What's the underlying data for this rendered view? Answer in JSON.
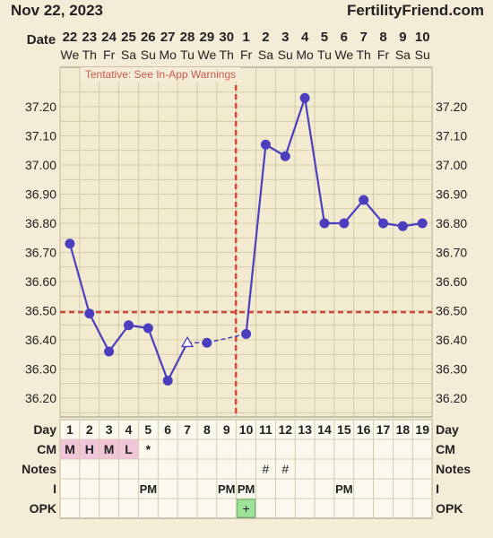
{
  "header": {
    "date": "Nov 22, 2023",
    "site": "FertilityFriend.com"
  },
  "colors": {
    "background": "#f5ecd7",
    "grid": "#c9c39f",
    "line": "#4b3fbf",
    "coverline": "#d0453b",
    "warning_text": "#c95a4c",
    "menses": "#f1c6d8",
    "opk_positive": "#9ee39a",
    "table_bg": "#fbf8ee"
  },
  "labels": {
    "date": "Date",
    "day": "Day",
    "cm": "CM",
    "notes": "Notes",
    "intercourse": "I",
    "opk": "OPK",
    "warning": "Tentative: See In-App Warnings"
  },
  "chart_data": {
    "type": "line",
    "dates": [
      "22",
      "23",
      "24",
      "25",
      "26",
      "27",
      "28",
      "29",
      "30",
      "1",
      "2",
      "3",
      "4",
      "5",
      "6",
      "7",
      "8",
      "9",
      "10"
    ],
    "weekdays": [
      "We",
      "Th",
      "Fr",
      "Sa",
      "Su",
      "Mo",
      "Tu",
      "We",
      "Th",
      "Fr",
      "Sa",
      "Su",
      "Mo",
      "Tu",
      "We",
      "Th",
      "Fr",
      "Sa",
      "Su"
    ],
    "cycle_days": [
      1,
      2,
      3,
      4,
      5,
      6,
      7,
      8,
      9,
      10,
      11,
      12,
      13,
      14,
      15,
      16,
      17,
      18,
      19
    ],
    "y_ticks": [
      "37.20",
      "37.10",
      "37.00",
      "36.90",
      "36.80",
      "36.70",
      "36.60",
      "36.50",
      "36.40",
      "36.30",
      "36.20"
    ],
    "ylim": [
      36.12,
      37.3
    ],
    "temps": [
      36.73,
      36.49,
      36.36,
      36.45,
      36.44,
      36.26,
      36.39,
      36.39,
      null,
      36.42,
      37.07,
      37.03,
      37.23,
      36.8,
      36.8,
      36.88,
      36.8,
      36.79,
      36.8
    ],
    "markers": [
      "dot",
      "dot",
      "dot",
      "dot",
      "dot",
      "dot",
      "open-triangle",
      "dot",
      null,
      "dot",
      "dot",
      "dot",
      "dot",
      "dot",
      "dot",
      "dot",
      "dot",
      "dot",
      "dot"
    ],
    "dashed_segments": [
      [
        6,
        7
      ],
      [
        7,
        9
      ]
    ],
    "coverline": 36.495,
    "ovulation_day": 10,
    "cm": [
      "M",
      "H",
      "M",
      "L",
      "*",
      "",
      "",
      "",
      "",
      "",
      "",
      "",
      "",
      "",
      "",
      "",
      "",
      "",
      ""
    ],
    "menses_days": [
      1,
      2,
      3,
      4
    ],
    "notes": [
      "",
      "",
      "",
      "",
      "",
      "",
      "",
      "",
      "",
      "",
      "#",
      "#",
      "",
      "",
      "",
      "",
      "",
      "",
      ""
    ],
    "intercourse": [
      "",
      "",
      "",
      "",
      "PM",
      "",
      "",
      "",
      "PM",
      "PM",
      "",
      "",
      "",
      "",
      "PM",
      "",
      "",
      "",
      ""
    ],
    "opk": [
      "",
      "",
      "",
      "",
      "",
      "",
      "",
      "",
      "",
      "+",
      "",
      "",
      "",
      "",
      "",
      "",
      "",
      "",
      ""
    ]
  }
}
